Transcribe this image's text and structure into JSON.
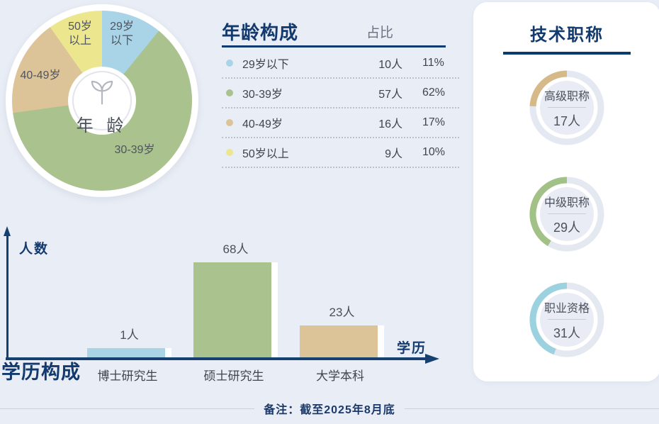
{
  "age_donut": {
    "center_label": "年 龄",
    "labels": [
      "29岁\n以下",
      "50岁\n以上",
      "40-49岁",
      "30-39岁"
    ]
  },
  "age_table": {
    "title": "年龄构成",
    "ratio_header": "占比",
    "rows": [
      {
        "label": "29岁以下",
        "count": "10人",
        "percent": "11%",
        "color": "#a9d3e6"
      },
      {
        "label": "30-39岁",
        "count": "57人",
        "percent": "62%",
        "color": "#a9c28e"
      },
      {
        "label": "40-49岁",
        "count": "16人",
        "percent": "17%",
        "color": "#dcc498"
      },
      {
        "label": "50岁以上",
        "count": "9人",
        "percent": "10%",
        "color": "#ece78f"
      }
    ]
  },
  "titles_panel": {
    "title": "技术职称",
    "rings": [
      {
        "label": "高级职称",
        "count": "17人",
        "value": 17,
        "color": "#d5b989"
      },
      {
        "label": "中级职称",
        "count": "29人",
        "value": 29,
        "color": "#a2c187"
      },
      {
        "label": "职业资格",
        "count": "31人",
        "value": 31,
        "color": "#9cd2e0"
      }
    ]
  },
  "education_chart": {
    "title": "学历构成",
    "ylabel": "人数",
    "xlabel": "学历",
    "bars": [
      {
        "label": "博士研究生",
        "value": 1,
        "value_label": "1人",
        "color": "#a9d4e6"
      },
      {
        "label": "硕士研究生",
        "value": 68,
        "value_label": "68人",
        "color": "#a9c28e"
      },
      {
        "label": "大学本科",
        "value": 23,
        "value_label": "23人",
        "color": "#dcc498"
      }
    ]
  },
  "footer": {
    "note": "备注：截至2025年8月底"
  },
  "chart_data": [
    {
      "type": "pie",
      "title": "年龄构成",
      "center_label": "年龄",
      "categories": [
        "29岁以下",
        "30-39岁",
        "40-49岁",
        "50岁以上"
      ],
      "values": [
        10,
        57,
        16,
        9
      ],
      "percents": [
        "11%",
        "62%",
        "17%",
        "10%"
      ],
      "unit": "人",
      "colors": [
        "#a9d3e6",
        "#a9c28e",
        "#dcc498",
        "#ece78f"
      ],
      "start_angle_deg": 0,
      "direction": "clockwise",
      "legend_position": "right-table"
    },
    {
      "type": "bar",
      "title": "学历构成",
      "categories": [
        "博士研究生",
        "硕士研究生",
        "大学本科"
      ],
      "values": [
        1,
        68,
        23
      ],
      "value_labels": [
        "1人",
        "68人",
        "23人"
      ],
      "xlabel": "学历",
      "ylabel": "人数",
      "unit": "人",
      "colors": [
        "#a9d4e6",
        "#a9c28e",
        "#dcc498"
      ],
      "grid": false,
      "ylim": [
        0,
        70
      ]
    },
    {
      "type": "donut-rings",
      "title": "技术职称",
      "categories": [
        "高级职称",
        "中级职称",
        "职业资格"
      ],
      "values": [
        17,
        29,
        31
      ],
      "value_labels": [
        "17人",
        "29人",
        "31人"
      ],
      "unit": "人",
      "colors": [
        "#d5b989",
        "#a2c187",
        "#9cd2e0"
      ],
      "arc_start": "top",
      "arc_direction": "counterclockwise"
    }
  ]
}
